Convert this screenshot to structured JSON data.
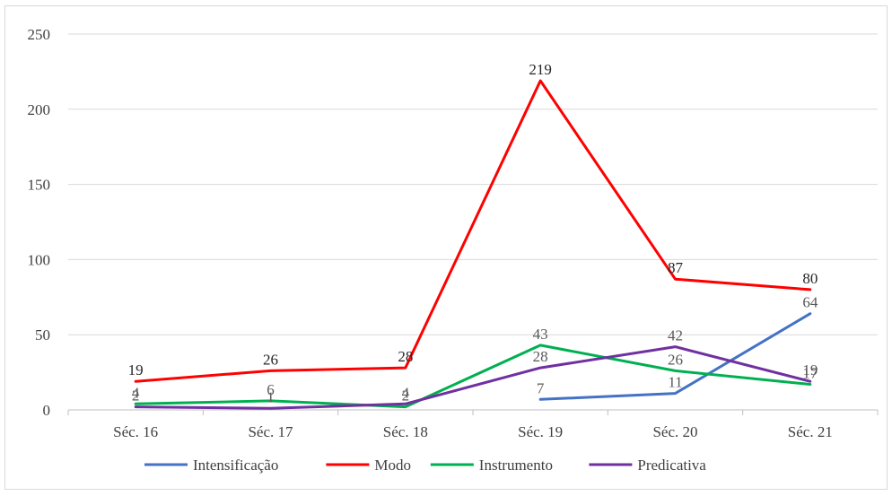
{
  "chart_data": {
    "type": "line",
    "title": "",
    "xlabel": "",
    "ylabel": "",
    "categories": [
      "Séc. 16",
      "Séc. 17",
      "Séc. 18",
      "Séc. 19",
      "Séc. 20",
      "Séc. 21"
    ],
    "ylim": [
      0,
      250
    ],
    "yticks": [
      0,
      50,
      100,
      150,
      200,
      250
    ],
    "grid": true,
    "legend_position": "bottom",
    "series": [
      {
        "name": "Intensificação",
        "color": "#4472C4",
        "values": [
          null,
          null,
          null,
          7,
          11,
          64
        ]
      },
      {
        "name": "Modo",
        "color": "#FF0000",
        "values": [
          19,
          26,
          28,
          219,
          87,
          80
        ]
      },
      {
        "name": "Instrumento",
        "color": "#00B050",
        "values": [
          4,
          6,
          2,
          43,
          26,
          17
        ]
      },
      {
        "name": "Predicativa",
        "color": "#7030A0",
        "values": [
          2,
          1,
          4,
          28,
          42,
          19
        ]
      }
    ]
  }
}
